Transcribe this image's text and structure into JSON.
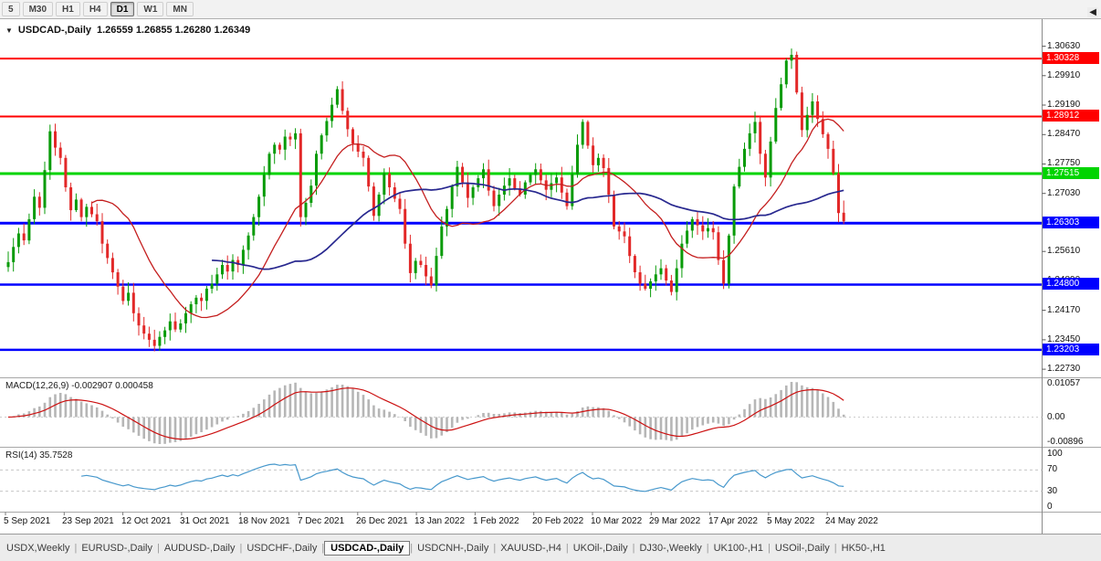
{
  "toolbar": {
    "timeframes": [
      {
        "label": "5",
        "active": false
      },
      {
        "label": "M30",
        "active": false
      },
      {
        "label": "H1",
        "active": false
      },
      {
        "label": "H4",
        "active": false
      },
      {
        "label": "D1",
        "active": true
      },
      {
        "label": "W1",
        "active": false
      },
      {
        "label": "MN",
        "active": false
      }
    ]
  },
  "icons": {
    "dropdown_arrow": "▼",
    "tab_scroll_left": "◀"
  },
  "chart": {
    "symbol_title": "USDCAD-,Daily",
    "ohlc_text": "1.26559 1.26855 1.26280 1.26349"
  },
  "macd": {
    "label": "MACD(12,26,9) -0.002907 0.000458"
  },
  "rsi": {
    "label": "RSI(14) 35.7528"
  },
  "colors": {
    "up": "#089b08",
    "down": "#e22828",
    "macd_hist": "#b6b6b6",
    "macd_signal": "#cc1111",
    "rsi_line": "#4798cc"
  },
  "chart_data": {
    "type": "candlestick",
    "title": "USDCAD-,Daily",
    "last_candle_ohlc": {
      "open": 1.26559,
      "high": 1.26855,
      "low": 1.2628,
      "close": 1.26349
    },
    "closes": [
      1.2535,
      1.2572,
      1.2605,
      1.2588,
      1.264,
      1.2695,
      1.2668,
      1.276,
      1.2855,
      1.2815,
      1.279,
      1.2718,
      1.2662,
      1.2688,
      1.2645,
      1.267,
      1.2652,
      1.2635,
      1.258,
      1.2545,
      1.251,
      1.2475,
      1.244,
      1.246,
      1.241,
      1.238,
      1.236,
      1.2345,
      1.233,
      1.2352,
      1.2368,
      1.239,
      1.237,
      1.2385,
      1.241,
      1.2432,
      1.2448,
      1.244,
      1.247,
      1.2482,
      1.2505,
      1.2528,
      1.2512,
      1.254,
      1.2528,
      1.2565,
      1.26,
      1.2645,
      1.2695,
      1.2748,
      1.28,
      1.2822,
      1.281,
      1.2842,
      1.2835,
      1.285,
      1.2645,
      1.268,
      1.2722,
      1.28,
      1.2845,
      1.288,
      1.292,
      1.2958,
      1.2905,
      1.286,
      1.2825,
      1.2805,
      1.279,
      1.272,
      1.2648,
      1.27,
      1.2752,
      1.2718,
      1.269,
      1.2665,
      1.258,
      1.2508,
      1.2538,
      1.2528,
      1.25,
      1.2478,
      1.255,
      1.2622,
      1.2665,
      1.272,
      1.2768,
      1.273,
      1.2692,
      1.2718,
      1.274,
      1.2762,
      1.271,
      1.2672,
      1.27,
      1.2722,
      1.274,
      1.2715,
      1.27,
      1.273,
      1.2748,
      1.2762,
      1.2735,
      1.2712,
      1.2728,
      1.2742,
      1.2705,
      1.2672,
      1.275,
      1.2822,
      1.2878,
      1.282,
      1.2772,
      1.279,
      1.2765,
      1.27,
      1.2622,
      1.261,
      1.2598,
      1.255,
      1.251,
      1.2482,
      1.247,
      1.2488,
      1.2505,
      1.252,
      1.249,
      1.2462,
      1.252,
      1.258,
      1.2612,
      1.264,
      1.2625,
      1.261,
      1.2618,
      1.2608,
      1.254,
      1.2482,
      1.26,
      1.272,
      1.2768,
      1.2812,
      1.285,
      1.2878,
      1.28,
      1.2742,
      1.283,
      1.2912,
      1.297,
      1.3028,
      1.3042,
      1.295,
      1.2858,
      1.2895,
      1.2928,
      1.2885,
      1.2848,
      1.2812,
      1.2752,
      1.2655,
      1.26349
    ],
    "x_tick_labels": [
      "5 Sep 2021",
      "23 Sep 2021",
      "12 Oct 2021",
      "31 Oct 2021",
      "18 Nov 2021",
      "7 Dec 2021",
      "26 Dec 2021",
      "13 Jan 2022",
      "1 Feb 2022",
      "20 Feb 2022",
      "10 Mar 2022",
      "29 Mar 2022",
      "17 Apr 2022",
      "5 May 2022",
      "24 May 2022"
    ],
    "y_tick_labels": [
      "1.30630",
      "1.29910",
      "1.29190",
      "1.28470",
      "1.27750",
      "1.27030",
      "1.26310",
      "1.25610",
      "1.24890",
      "1.24170",
      "1.23450",
      "1.22730"
    ],
    "y_anchor": {
      "price_top": 1.3118,
      "price_bottom": 1.2262
    },
    "levels": [
      {
        "label": "1.30328",
        "value": 1.30328,
        "color": "#ff0000",
        "width": 2
      },
      {
        "label": "1.28912",
        "value": 1.28912,
        "color": "#ff0000",
        "width": 2
      },
      {
        "label": "1.27515",
        "value": 1.27515,
        "color": "#00d400",
        "width": 3
      },
      {
        "label": "1.26303",
        "value": 1.26303,
        "color": "#0000ff",
        "width": 3
      },
      {
        "label": "1.24800",
        "value": 1.248,
        "color": "#0000ff",
        "width": 2.5
      },
      {
        "label": "1.23203",
        "value": 1.23203,
        "color": "#0000ff",
        "width": 2.5
      }
    ],
    "moving_averages": [
      {
        "period": 17,
        "color": "#c41e1e",
        "width": 1.3
      },
      {
        "period": 40,
        "color": "#28288f",
        "width": 1.7
      }
    ],
    "macd": {
      "fast": 12,
      "slow": 26,
      "signal": 9,
      "current_main": -0.002907,
      "current_signal": 0.000458,
      "axis_labels": [
        "0.01057",
        "0.00",
        "-0.00896"
      ]
    },
    "rsi": {
      "period": 14,
      "current": 35.7528,
      "axis_labels": [
        "100",
        "70",
        "30",
        "0"
      ],
      "levels": [
        70,
        30
      ]
    }
  },
  "tabs": {
    "items": [
      {
        "label": "USDX,Weekly",
        "active": false
      },
      {
        "label": "EURUSD-,Daily",
        "active": false
      },
      {
        "label": "AUDUSD-,Daily",
        "active": false
      },
      {
        "label": "USDCHF-,Daily",
        "active": false
      },
      {
        "label": "USDCAD-,Daily",
        "active": true
      },
      {
        "label": "USDCNH-,Daily",
        "active": false
      },
      {
        "label": "XAUUSD-,H4",
        "active": false
      },
      {
        "label": "UKOil-,Daily",
        "active": false
      },
      {
        "label": "DJ30-,Weekly",
        "active": false
      },
      {
        "label": "UK100-,H1",
        "active": false
      },
      {
        "label": "USOil-,Daily",
        "active": false
      },
      {
        "label": "HK50-,H1",
        "active": false
      }
    ]
  }
}
